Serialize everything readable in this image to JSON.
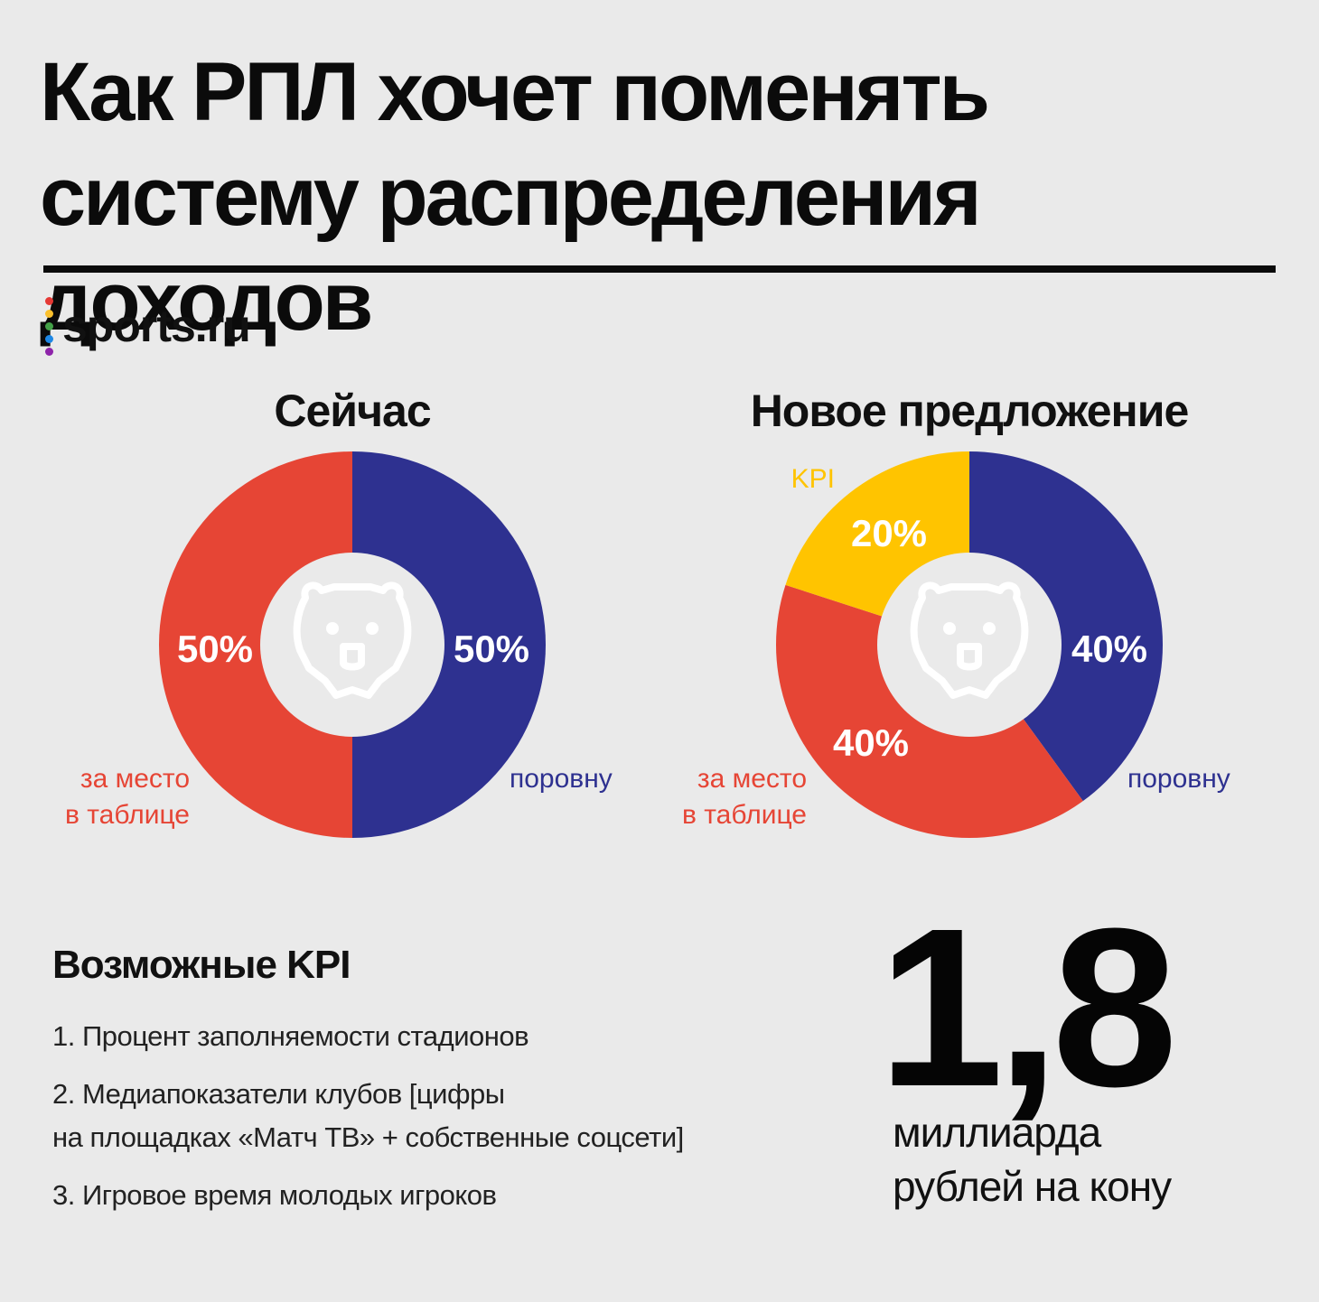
{
  "title": "Как РПЛ хочет поменять систему распределения доходов",
  "logo": {
    "text": "sports.ru",
    "dot_colors": [
      "#e53935",
      "#fbc02d",
      "#43a047",
      "#1e88e5",
      "#8e24aa"
    ]
  },
  "colors": {
    "red": "#e64535",
    "blue": "#2e3190",
    "yellow": "#ffc400",
    "center": "#eaeaea"
  },
  "chart_data": [
    {
      "type": "pie",
      "subtype": "donut",
      "title": "Сейчас",
      "slices": [
        {
          "value": 50,
          "label": "50%",
          "annotation": "поровну",
          "color": "#2e3190"
        },
        {
          "value": 50,
          "label": "50%",
          "annotation": "за место\nв таблице",
          "color": "#e64535"
        }
      ],
      "center_icon": "bear-logo-icon"
    },
    {
      "type": "pie",
      "subtype": "donut",
      "title": "Новое предложение",
      "slices": [
        {
          "value": 40,
          "label": "40%",
          "annotation": "поровну",
          "color": "#2e3190"
        },
        {
          "value": 40,
          "label": "40%",
          "annotation": "за место\nв таблице",
          "color": "#e64535"
        },
        {
          "value": 20,
          "label": "20%",
          "annotation": "KPI",
          "color": "#ffc400"
        }
      ],
      "center_icon": "bear-logo-icon"
    }
  ],
  "kpi": {
    "heading": "Возможные KPI",
    "items": [
      "1. Процент заполняемости стадионов",
      "2. Медиапоказатели клубов [цифры\nна площадках «Матч ТВ» + собственные соцсети]",
      "3. Игровое время молодых игроков"
    ]
  },
  "stake": {
    "number": "1,8",
    "caption": "миллиарда\nрублей на кону"
  }
}
